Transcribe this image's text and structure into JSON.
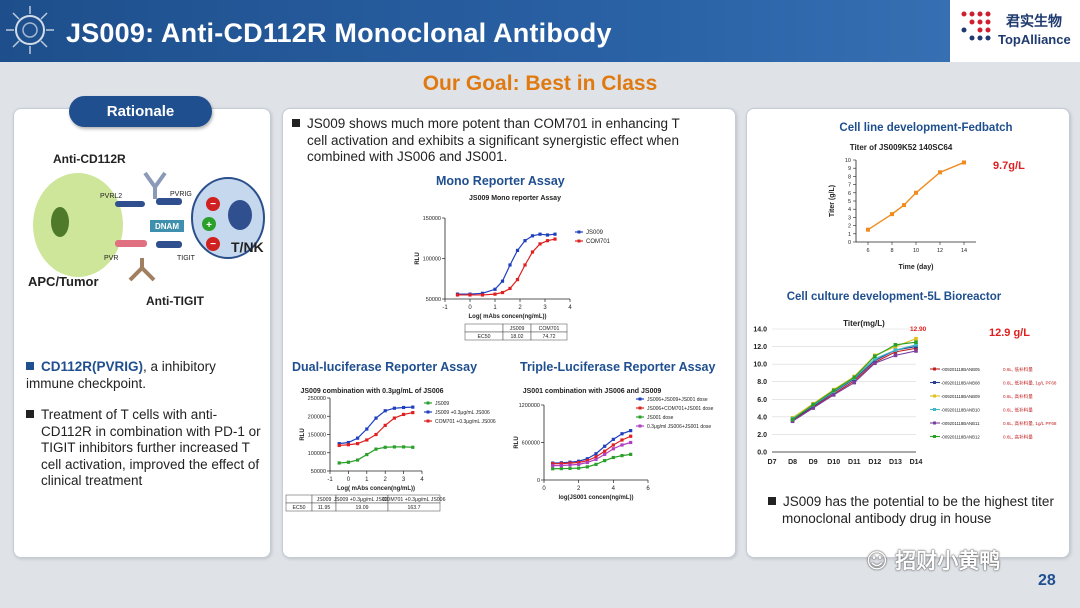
{
  "header": {
    "title": "JS009: Anti-CD112R Monoclonal Antibody",
    "logo_cn": "君实生物",
    "logo_en": "TopAlliance"
  },
  "goal": "Our Goal: Best in Class",
  "left": {
    "pill": "Rationale",
    "diagram": {
      "anti_cd112r": "Anti-CD112R",
      "pvrl2": "PVRL2",
      "pvrig": "PVRIG",
      "dnam": "DNAM",
      "pvr": "PVR",
      "tigit": "TIGIT",
      "tnk": "T/NK",
      "apc": "APC/Tumor",
      "anti_tigit": "Anti-TIGIT"
    },
    "bullet1_bold": "CD112R(PVRIG)",
    "bullet1_rest": ", a inhibitory immune checkpoint.",
    "bullet2": "Treatment of T cells with anti-CD112R in combination with PD-1 or TIGIT inhibitors further increased T cell activation, improved the effect of clinical treatment"
  },
  "middle": {
    "bullet": "JS009 shows much more potent than COM701 in enhancing T cell activation and exhibits a significant synergistic effect when combined with JS006 and JS001.",
    "mono_title": "Mono Reporter Assay",
    "dual_title": "Dual-luciferase Reporter Assay",
    "triple_title": "Triple-Luciferase Reporter Assay"
  },
  "right": {
    "bullet": "JS009 has the potential  to be the highest titer monoclonal antibody drug in house"
  },
  "watermark": "招财小黄鸭",
  "page_number": "28",
  "chart_data": [
    {
      "type": "line",
      "title": "JS009 Mono reporter Assay",
      "xlabel": "Log( mAbs concen(ng/mL))",
      "ylabel": "RLU",
      "xlim": [
        -1,
        4
      ],
      "ylim": [
        50000,
        150000
      ],
      "xticks": [
        "-1",
        "0",
        "1",
        "2",
        "3",
        "4"
      ],
      "yticks": [
        "50000",
        "100000",
        "150000"
      ],
      "series": [
        {
          "name": "JS009",
          "color": "#1f3fbf",
          "x": [
            -0.5,
            0,
            0.5,
            1,
            1.3,
            1.6,
            1.9,
            2.2,
            2.5,
            2.8,
            3.1,
            3.4
          ],
          "y": [
            56000,
            56000,
            57000,
            62000,
            72000,
            92000,
            110000,
            122000,
            128000,
            130000,
            129000,
            130000
          ]
        },
        {
          "name": "COM701",
          "color": "#e02020",
          "x": [
            -0.5,
            0,
            0.5,
            1,
            1.3,
            1.6,
            1.9,
            2.2,
            2.5,
            2.8,
            3.1,
            3.4
          ],
          "y": [
            55000,
            55000,
            55000,
            56000,
            58000,
            63000,
            74000,
            92000,
            108000,
            118000,
            122000,
            124000
          ]
        }
      ],
      "table": {
        "headers": [
          "",
          "JS009",
          "COM701"
        ],
        "rows": [
          [
            "EC50",
            "18.02",
            "74.72"
          ]
        ]
      }
    },
    {
      "type": "line",
      "title": "JS009 combination with 0.3μg/mL of JS006",
      "xlabel": "Log( mAbs concen(ng/mL))",
      "ylabel": "RLU",
      "xlim": [
        -1,
        4
      ],
      "ylim": [
        50000,
        250000
      ],
      "xticks": [
        "-1",
        "0",
        "1",
        "2",
        "3",
        "4"
      ],
      "yticks": [
        "50000",
        "100000",
        "150000",
        "200000",
        "250000"
      ],
      "series": [
        {
          "name": "JS009",
          "color": "#2aa02a",
          "x": [
            -0.5,
            0,
            0.5,
            1,
            1.5,
            2,
            2.5,
            3,
            3.5
          ],
          "y": [
            72000,
            74000,
            80000,
            95000,
            110000,
            115000,
            116000,
            116000,
            115000
          ]
        },
        {
          "name": "JS009 +0.3μg/mL JS006",
          "color": "#1f3fbf",
          "x": [
            -0.5,
            0,
            0.5,
            1,
            1.5,
            2,
            2.5,
            3,
            3.5
          ],
          "y": [
            125000,
            128000,
            140000,
            165000,
            195000,
            215000,
            222000,
            224000,
            225000
          ]
        },
        {
          "name": "COM701 +0.3μg/mL JS006",
          "color": "#e02020",
          "x": [
            -0.5,
            0,
            0.5,
            1,
            1.5,
            2,
            2.5,
            3,
            3.5
          ],
          "y": [
            120000,
            122000,
            125000,
            135000,
            150000,
            175000,
            195000,
            205000,
            210000
          ]
        }
      ],
      "table": {
        "headers": [
          "",
          "JS009",
          "JS009 +0.3μg/mL JS006",
          "COM701 +0.3μg/mL JS006"
        ],
        "rows": [
          [
            "EC50",
            "11.95",
            "19.09",
            "163.7"
          ]
        ]
      }
    },
    {
      "type": "line",
      "title": "JS001 combination with JS006 and JS009",
      "xlabel": "log(JS001 concen(ng/mL))",
      "ylabel": "RLU",
      "xlim": [
        0,
        6
      ],
      "ylim": [
        0,
        1200000
      ],
      "xticks": [
        "0",
        "2",
        "4",
        "6"
      ],
      "yticks": [
        "0",
        "600000",
        "1200000"
      ],
      "series": [
        {
          "name": "JS006+JS009+JS001 dose",
          "color": "#1f3fbf",
          "x": [
            0.5,
            1,
            1.5,
            2,
            2.5,
            3,
            3.5,
            4,
            4.5,
            5
          ],
          "y": [
            270000,
            275000,
            285000,
            300000,
            340000,
            420000,
            540000,
            650000,
            740000,
            790000
          ]
        },
        {
          "name": "JS006+COM701+JS001 dose",
          "color": "#e02020",
          "x": [
            0.5,
            1,
            1.5,
            2,
            2.5,
            3,
            3.5,
            4,
            4.5,
            5
          ],
          "y": [
            260000,
            262000,
            270000,
            280000,
            310000,
            370000,
            460000,
            560000,
            640000,
            700000
          ]
        },
        {
          "name": "JS001 dose",
          "color": "#2aa02a",
          "x": [
            0.5,
            1,
            1.5,
            2,
            2.5,
            3,
            3.5,
            4,
            4.5,
            5
          ],
          "y": [
            180000,
            182000,
            185000,
            190000,
            210000,
            250000,
            310000,
            360000,
            390000,
            410000
          ]
        },
        {
          "name": "0.3μg/ml JS006+JS001 dose",
          "color": "#b03fc0",
          "x": [
            0.5,
            1,
            1.5,
            2,
            2.5,
            3,
            3.5,
            4,
            4.5,
            5
          ],
          "y": [
            230000,
            232000,
            240000,
            250000,
            280000,
            330000,
            410000,
            500000,
            560000,
            600000
          ]
        }
      ]
    },
    {
      "type": "line",
      "title": "Cell line development-Fedbatch",
      "subtitle": "Titer of JS009K52 140SC64",
      "xlabel": "Time (day)",
      "ylabel": "Titer (g/L)",
      "xlim": [
        5,
        15
      ],
      "ylim": [
        0,
        10
      ],
      "xticks": [
        "6",
        "8",
        "10",
        "12",
        "14"
      ],
      "yticks": [
        "0",
        "1",
        "2",
        "3",
        "4",
        "5",
        "6",
        "7",
        "8",
        "9",
        "10"
      ],
      "series": [
        {
          "name": "",
          "color": "#f08c1e",
          "x": [
            6,
            8,
            9,
            10,
            12,
            14
          ],
          "y": [
            1.5,
            3.4,
            4.5,
            6.0,
            8.5,
            9.7
          ]
        }
      ],
      "annotation": "9.7g/L"
    },
    {
      "type": "line",
      "title": "Cell culture development-5L Bioreactor",
      "subtitle": "Titer(mg/L)",
      "xlabel": "",
      "ylabel": "",
      "categories": [
        "D7",
        "D8",
        "D9",
        "D10",
        "D11",
        "D12",
        "D13",
        "D14"
      ],
      "ylim": [
        0,
        14
      ],
      "yticks": [
        "0.0",
        "2.0",
        "4.0",
        "6.0",
        "8.0",
        "10.0",
        "12.0",
        "14.0"
      ],
      "peak_label": "12.90",
      "annotation": "12.9 g/L",
      "series": [
        {
          "name": "-009201118BANB05",
          "note": "0.6L, 低补料量",
          "color": "#c02020",
          "values": [
            null,
            3.6,
            5.1,
            6.6,
            8.1,
            10.2,
            11.4,
            11.8
          ]
        },
        {
          "name": "-009201118BANB08",
          "note": "0.6L, 低补料量, 1g/L PF68",
          "color": "#2a3f8f",
          "values": [
            null,
            3.7,
            5.2,
            6.8,
            8.3,
            10.4,
            11.6,
            12.0
          ]
        },
        {
          "name": "-009201118BANB09",
          "note": "0.6L, 高补料量",
          "color": "#e0c020",
          "values": [
            null,
            3.9,
            5.5,
            7.1,
            8.6,
            11.0,
            12.0,
            12.9
          ]
        },
        {
          "name": "-009201118BANB10",
          "note": "0.6L, 低补料量",
          "color": "#3fb8c8",
          "values": [
            null,
            3.8,
            5.3,
            6.9,
            8.4,
            10.6,
            11.6,
            12.2
          ]
        },
        {
          "name": "-009201118BANB11",
          "note": "0.6L, 高补料量, 1g/L PF68",
          "color": "#7b3fa0",
          "values": [
            null,
            3.5,
            5.0,
            6.5,
            7.9,
            10.1,
            11.0,
            11.5
          ]
        },
        {
          "name": "-009201118BANB12",
          "note": "0.6L, 高补料量",
          "color": "#2aa02a",
          "values": [
            null,
            3.7,
            5.4,
            7.0,
            8.5,
            10.9,
            12.2,
            12.5
          ]
        }
      ]
    }
  ]
}
